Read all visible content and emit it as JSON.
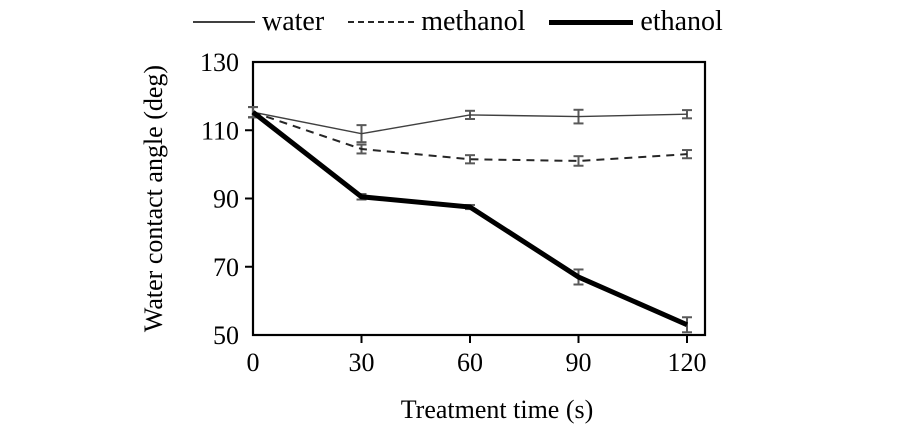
{
  "chart_data": {
    "type": "line",
    "title": "",
    "xlabel": "Treatment time (s)",
    "ylabel": "Water contact angle (deg)",
    "x": [
      0,
      30,
      60,
      90,
      120
    ],
    "xlim": [
      0,
      120
    ],
    "ylim": [
      50,
      130
    ],
    "xticks": [
      0,
      30,
      60,
      90,
      120
    ],
    "yticks": [
      50,
      70,
      90,
      110,
      130
    ],
    "grid": false,
    "legend_position": "top",
    "error_bar_color": "#595959",
    "frame_color": "#000000",
    "series": [
      {
        "name": "water",
        "values": [
          115.3,
          109.0,
          114.5,
          114.0,
          114.7
        ],
        "errors": [
          1.5,
          2.5,
          1.2,
          2.0,
          1.2
        ],
        "style": {
          "color": "#404040",
          "width": 1.4,
          "dash": "",
          "swatch_width": 62
        }
      },
      {
        "name": "methanol",
        "values": [
          115.3,
          104.5,
          101.5,
          101.0,
          103.0
        ],
        "errors": [
          1.5,
          1.3,
          1.2,
          1.4,
          1.2
        ],
        "style": {
          "color": "#262626",
          "width": 2,
          "dash": "8,6",
          "swatch_width": 66
        }
      },
      {
        "name": "ethanol",
        "values": [
          115.3,
          90.5,
          87.5,
          67.0,
          53.0
        ],
        "errors": [
          1.5,
          0.8,
          0.6,
          2.2,
          2.2
        ],
        "style": {
          "color": "#000000",
          "width": 5,
          "dash": "",
          "swatch_width": 84
        }
      }
    ]
  }
}
